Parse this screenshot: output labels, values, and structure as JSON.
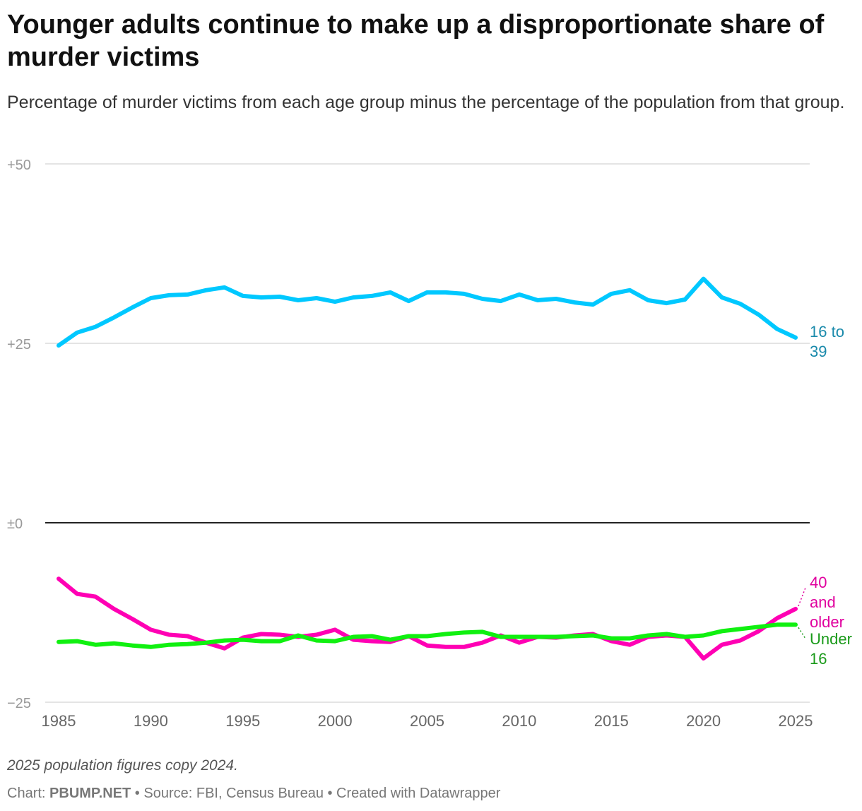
{
  "header": {
    "title": "Younger adults continue to make up a disproportionate share of murder victims",
    "subtitle": "Percentage of murder victims from each age group minus the percentage of the population from that group."
  },
  "footer": {
    "note": "2025 population figures copy 2024.",
    "chart_prefix": "Chart: ",
    "chart_by": "PBUMP.NET",
    "source": " • Source: FBI, Census Bureau • Created with Datawrapper"
  },
  "chart_data": {
    "type": "line",
    "ylim": [
      -25,
      50
    ],
    "xlim": [
      1985,
      2025
    ],
    "y_ticks": [
      {
        "value": 50,
        "label": "+50"
      },
      {
        "value": 25,
        "label": "+25"
      },
      {
        "value": 0,
        "label": "±0"
      },
      {
        "value": -25,
        "label": "−25"
      }
    ],
    "x_ticks": [
      1985,
      1990,
      1995,
      2000,
      2005,
      2010,
      2015,
      2020,
      2025
    ],
    "grid": true,
    "x": [
      1985,
      1986,
      1987,
      1988,
      1989,
      1990,
      1991,
      1992,
      1993,
      1994,
      1995,
      1996,
      1997,
      1998,
      1999,
      2000,
      2001,
      2002,
      2003,
      2004,
      2005,
      2006,
      2007,
      2008,
      2009,
      2010,
      2011,
      2012,
      2013,
      2014,
      2015,
      2016,
      2017,
      2018,
      2019,
      2020,
      2021,
      2022,
      2023,
      2024,
      2025
    ],
    "series": [
      {
        "name": "16 to 39",
        "label_lines": [
          "16 to",
          "39"
        ],
        "color": "#00c8ff",
        "label_color": "#1a8aab",
        "values": [
          24.7,
          26.5,
          27.3,
          28.6,
          30.0,
          31.3,
          31.7,
          31.8,
          32.4,
          32.8,
          31.6,
          31.4,
          31.5,
          31.0,
          31.3,
          30.8,
          31.4,
          31.6,
          32.1,
          30.9,
          32.1,
          32.1,
          31.9,
          31.2,
          30.9,
          31.8,
          31.0,
          31.2,
          30.7,
          30.4,
          31.9,
          32.4,
          31.0,
          30.6,
          31.1,
          34.0,
          31.4,
          30.5,
          29.0,
          27.0,
          25.8
        ]
      },
      {
        "name": "40 and older",
        "label_lines": [
          "40",
          "and",
          "older"
        ],
        "color": "#ff00b4",
        "label_color": "#e0009e",
        "values": [
          -7.8,
          -9.9,
          -10.3,
          -12.0,
          -13.4,
          -14.9,
          -15.6,
          -15.8,
          -16.7,
          -17.5,
          -16.0,
          -15.5,
          -15.6,
          -15.9,
          -15.6,
          -14.9,
          -16.3,
          -16.5,
          -16.6,
          -15.8,
          -17.1,
          -17.3,
          -17.3,
          -16.7,
          -15.7,
          -16.7,
          -15.9,
          -16.0,
          -15.7,
          -15.5,
          -16.5,
          -17.0,
          -15.9,
          -15.7,
          -15.9,
          -18.9,
          -17.0,
          -16.4,
          -15.1,
          -13.3,
          -12.0
        ]
      },
      {
        "name": "Under 16",
        "label_lines": [
          "Under",
          "16"
        ],
        "color": "#10f010",
        "label_color": "#1a9a1a",
        "values": [
          -16.6,
          -16.5,
          -17.0,
          -16.8,
          -17.1,
          -17.3,
          -17.0,
          -16.9,
          -16.7,
          -16.4,
          -16.3,
          -16.5,
          -16.5,
          -15.7,
          -16.4,
          -16.5,
          -15.9,
          -15.8,
          -16.3,
          -15.8,
          -15.8,
          -15.5,
          -15.3,
          -15.2,
          -15.9,
          -15.9,
          -15.9,
          -15.9,
          -15.8,
          -15.7,
          -16.1,
          -16.1,
          -15.7,
          -15.5,
          -15.9,
          -15.7,
          -15.1,
          -14.8,
          -14.5,
          -14.2,
          -14.2
        ]
      }
    ]
  }
}
